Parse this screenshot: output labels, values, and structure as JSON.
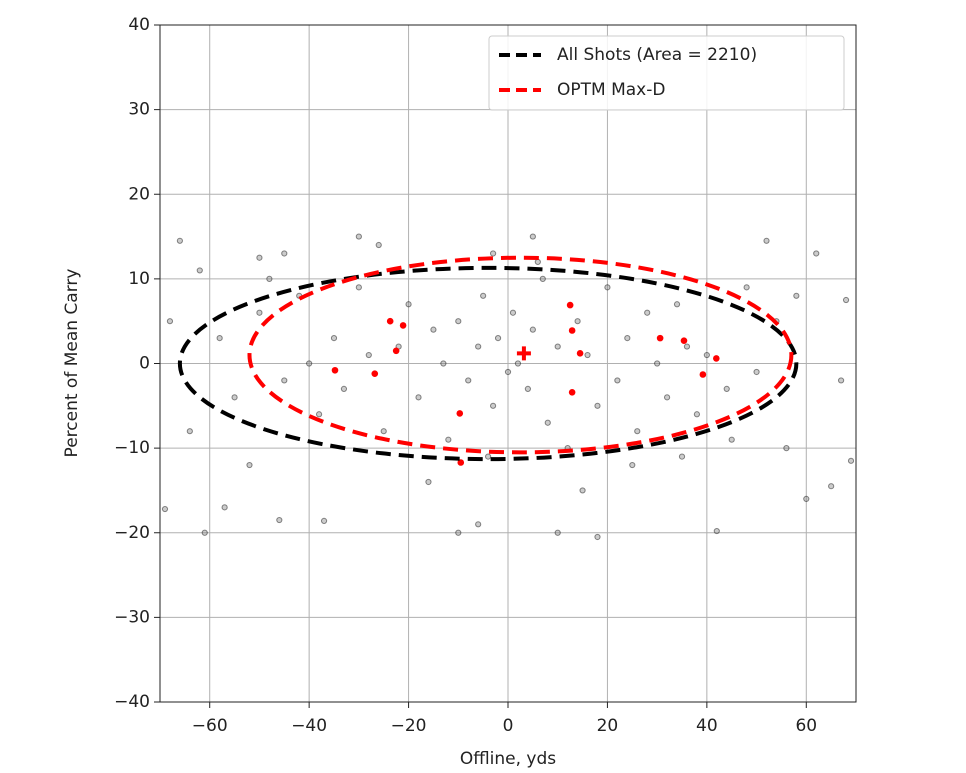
{
  "chart_data": {
    "type": "scatter",
    "xlabel": "Offline, yds",
    "ylabel": "Percent of Mean Carry",
    "xlim": [
      -70,
      70
    ],
    "ylim": [
      -40,
      40
    ],
    "xticks": [
      {
        "value": -60,
        "label": "−60"
      },
      {
        "value": -40,
        "label": "−40"
      },
      {
        "value": -20,
        "label": "−20"
      },
      0,
      20,
      40,
      60
    ],
    "yticks": [
      {
        "value": -40,
        "label": "−40"
      },
      {
        "value": -30,
        "label": "−30"
      },
      {
        "value": -20,
        "label": "−20"
      },
      {
        "value": -10,
        "label": "−10"
      },
      0,
      10,
      20,
      30,
      40
    ],
    "grid": true,
    "legend_loc": "upper right",
    "series": [
      {
        "color": "#808080",
        "marker": "circle",
        "x": [
          -66,
          -62,
          -57,
          -61,
          -46,
          -37,
          -30,
          -26,
          -10,
          -6,
          10,
          18,
          42,
          60,
          65,
          69,
          68,
          52,
          5,
          -3,
          -50,
          -45,
          -69,
          -68,
          67,
          58,
          -58,
          -55,
          -50,
          -45,
          -42,
          -40,
          -38,
          -35,
          -33,
          -30,
          -28,
          -25,
          -22,
          -20,
          -18,
          -15,
          -13,
          -12,
          -10,
          -8,
          -6,
          -5,
          -3,
          -2,
          0,
          1,
          2,
          4,
          5,
          7,
          8,
          10,
          12,
          14,
          16,
          18,
          20,
          22,
          24,
          26,
          28,
          30,
          32,
          34,
          36,
          38,
          40,
          44,
          48,
          50,
          54,
          -64,
          -52,
          -48,
          -16,
          -4,
          6,
          15,
          25,
          35,
          45,
          56,
          62
        ],
        "y": [
          14.5,
          11,
          -17,
          -20,
          -18.5,
          -18.6,
          15,
          14,
          -20,
          -19,
          -20,
          -20.5,
          -19.8,
          -16,
          -14.5,
          -11.5,
          7.5,
          14.5,
          15,
          13,
          12.5,
          13,
          -17.2,
          5,
          -2,
          8,
          3,
          -4,
          6,
          -2,
          8,
          0,
          -6,
          3,
          -3,
          9,
          1,
          -8,
          2,
          7,
          -4,
          4,
          0,
          -9,
          5,
          -2,
          2,
          8,
          -5,
          3,
          -1,
          6,
          0,
          -3,
          4,
          10,
          -7,
          2,
          -10,
          5,
          1,
          -5,
          9,
          -2,
          3,
          -8,
          6,
          0,
          -4,
          7,
          2,
          -6,
          1,
          -3,
          9,
          -1,
          5,
          -8,
          -12,
          10,
          -14,
          -11,
          12,
          -15,
          -12,
          -11,
          -9,
          -10,
          13
        ]
      },
      {
        "color": "#ff0000",
        "marker": "circle",
        "x": [
          -23.7,
          -21.1,
          -22.5,
          -26.8,
          -34.8,
          -9.7,
          -9.5,
          12.5,
          12.9,
          14.5,
          12.9,
          30.6,
          35.4,
          39.2,
          41.9
        ],
        "y": [
          5.0,
          4.5,
          1.5,
          -1.2,
          -0.8,
          -5.9,
          -11.7,
          6.9,
          3.9,
          1.2,
          -3.4,
          3.0,
          2.7,
          -1.3,
          0.6
        ]
      },
      {
        "color": "#ff0000",
        "marker": "plus",
        "x": [
          3.2
        ],
        "y": [
          1.2
        ]
      }
    ],
    "ellipses": [
      {
        "name": "All Shots (Area = 2210)",
        "color": "#000000",
        "cx": -4,
        "cy": 0,
        "rx": 62,
        "ry": 11.3
      },
      {
        "name": "OPTM Max-D",
        "color": "#ff0000",
        "cx": 2.5,
        "cy": 1,
        "rx": 54.5,
        "ry": 11.5
      }
    ]
  }
}
